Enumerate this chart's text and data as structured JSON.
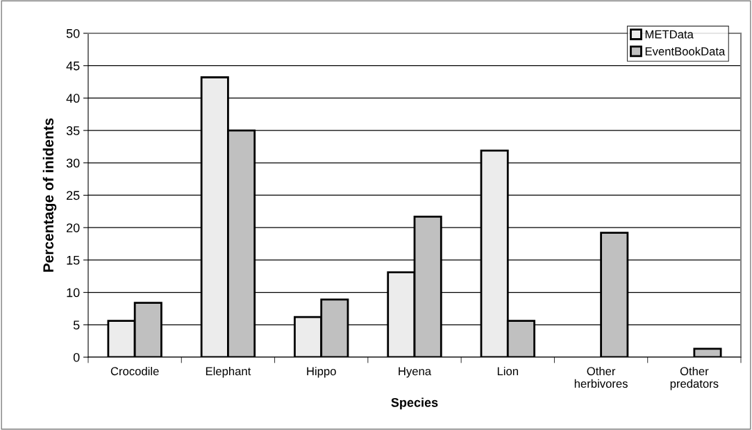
{
  "chart_data": {
    "type": "bar",
    "xlabel": "Species",
    "ylabel": "Percentage of inidents",
    "categories": [
      "Crocodile",
      "Elephant",
      "Hippo",
      "Hyena",
      "Lion",
      "Other\nherbivores",
      "Other\npredators"
    ],
    "series": [
      {
        "name": "METData",
        "color": "#ececec",
        "values": [
          5.6,
          43.2,
          6.2,
          13.1,
          31.9,
          null,
          null
        ]
      },
      {
        "name": "EventBookData",
        "color": "#c0c0c0",
        "values": [
          8.4,
          35.0,
          8.9,
          21.7,
          5.6,
          19.2,
          1.3
        ]
      }
    ],
    "ylim": [
      0,
      50
    ],
    "yticks": [
      0,
      5,
      10,
      15,
      20,
      25,
      30,
      35,
      40,
      45,
      50
    ],
    "grid": "y",
    "legend": "top right"
  }
}
